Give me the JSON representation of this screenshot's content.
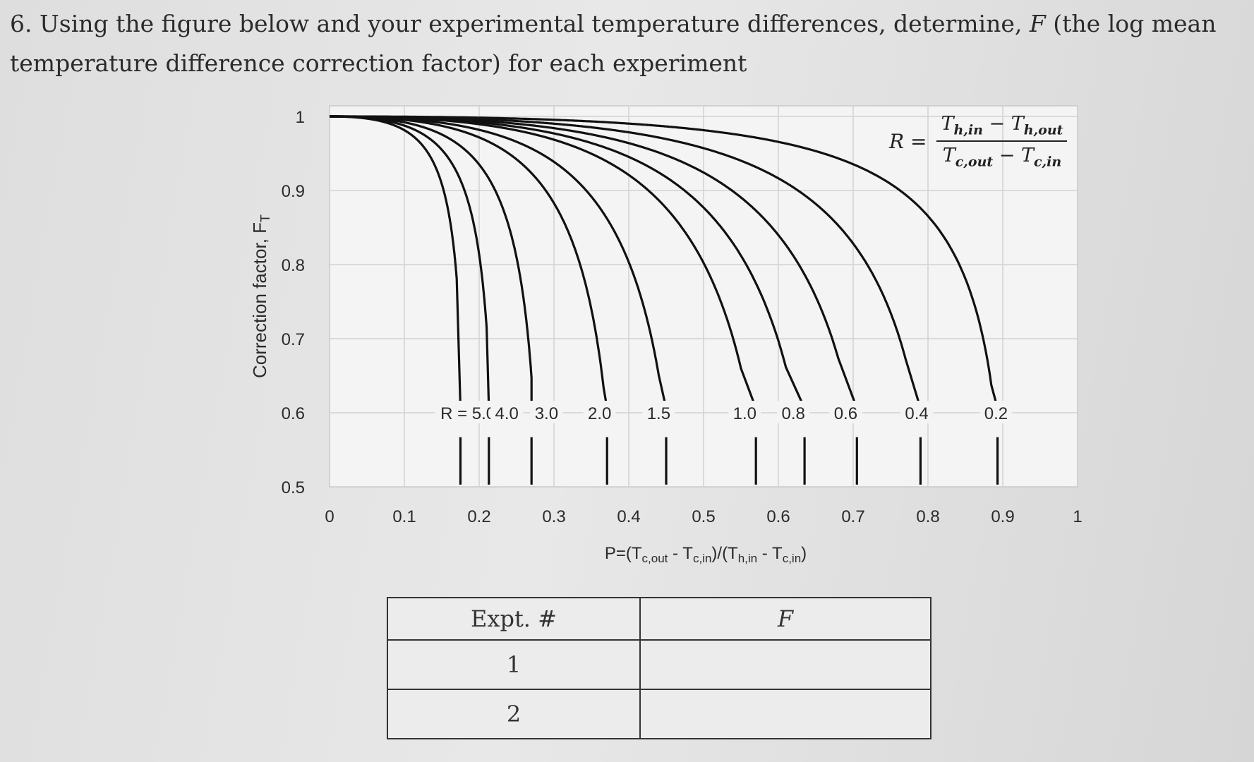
{
  "question": {
    "part1": "6. Using the figure below and your experimental temperature differences, determine, ",
    "f_symbol": "F",
    "part2": " (the log mean",
    "line2": "temperature difference correction factor) for each experiment"
  },
  "chart_data": {
    "type": "line",
    "xlabel_parts": [
      "P=(T",
      "c,out",
      " - T",
      "c,in",
      ")/(T",
      "h,in",
      " - T",
      "c,in",
      ")"
    ],
    "ylabel_parts": [
      "Correction factor, F",
      "T"
    ],
    "xlim": [
      0,
      1
    ],
    "ylim": [
      0.5,
      1
    ],
    "x_ticks": [
      "0",
      "0.1",
      "0.2",
      "0.3",
      "0.4",
      "0.5",
      "0.6",
      "0.7",
      "0.8",
      "0.9",
      "1"
    ],
    "y_ticks": [
      "0.5",
      "0.6",
      "0.7",
      "0.8",
      "0.9",
      "1"
    ],
    "grid": true,
    "curve_labels": [
      "R = 5.0",
      "4.0",
      "3.0",
      "2.0",
      "1.5",
      "1.0",
      "0.8",
      "0.6",
      "0.4",
      "0.2"
    ],
    "series": [
      {
        "R": 5.0,
        "pmax": 0.17,
        "label_x": 0.175
      },
      {
        "R": 4.0,
        "pmax": 0.21,
        "label_x": 0.213
      },
      {
        "R": 3.0,
        "pmax": 0.27,
        "label_x": 0.27
      },
      {
        "R": 2.0,
        "pmax": 0.37,
        "label_x": 0.371
      },
      {
        "R": 1.5,
        "pmax": 0.44,
        "label_x": 0.45
      },
      {
        "R": 1.0,
        "pmax": 0.55,
        "label_x": 0.57
      },
      {
        "R": 0.8,
        "pmax": 0.61,
        "label_x": 0.635
      },
      {
        "R": 0.6,
        "pmax": 0.68,
        "label_x": 0.705
      },
      {
        "R": 0.4,
        "pmax": 0.77,
        "label_x": 0.79
      },
      {
        "R": 0.2,
        "pmax": 0.89,
        "label_x": 0.893
      }
    ],
    "formula": {
      "lhs": "R =",
      "num": [
        "T",
        "h,in",
        " − T",
        "h,out"
      ],
      "den": [
        "T",
        "c,out",
        " − T",
        "c,in"
      ]
    }
  },
  "table": {
    "headers": [
      "Expt. #",
      "F"
    ],
    "rows": [
      [
        "1",
        ""
      ],
      [
        "2",
        ""
      ]
    ]
  }
}
